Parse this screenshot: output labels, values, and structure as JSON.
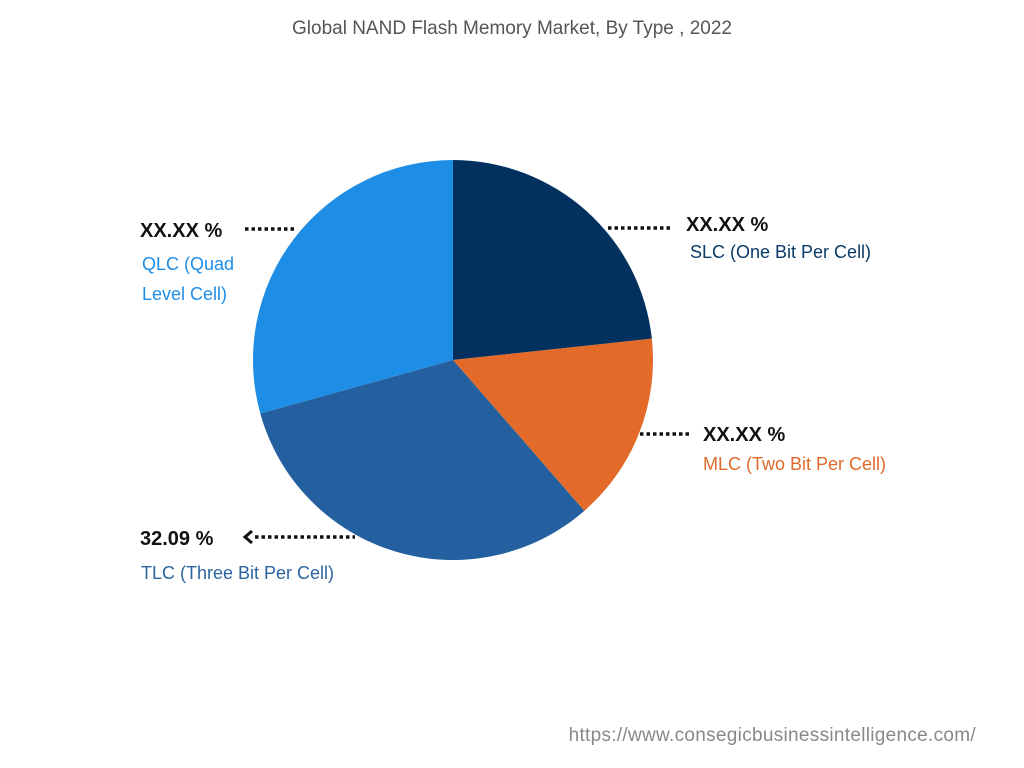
{
  "chart_data": {
    "type": "pie",
    "title": "Global NAND Flash Memory Market, By Type , 2022",
    "start_angle": "12 o'clock, clockwise",
    "slices": [
      {
        "label": "SLC (One Bit Per Cell)",
        "value": 23.3,
        "value_label": "XX.XX %",
        "color": "#02305f"
      },
      {
        "label": "MLC (Two Bit Per Cell)",
        "value": 15.3,
        "value_label": "XX.XX %",
        "color": "#e36a28"
      },
      {
        "label": "TLC (Three Bit Per Cell)",
        "value": 32.09,
        "value_label": "32.09 %",
        "color": "#2460a0"
      },
      {
        "label": "QLC (Quad Level Cell)",
        "value": 29.31,
        "value_label": "XX.XX %",
        "color": "#1e8de6"
      }
    ],
    "label_colors": {
      "SLC": "#0b3a66",
      "MLC": "#e06a2a",
      "TLC": "#2a64a0",
      "QLC": "#1e8de6"
    }
  },
  "footer": {
    "url": "https://www.consegicbusinessintelligence.com/"
  }
}
